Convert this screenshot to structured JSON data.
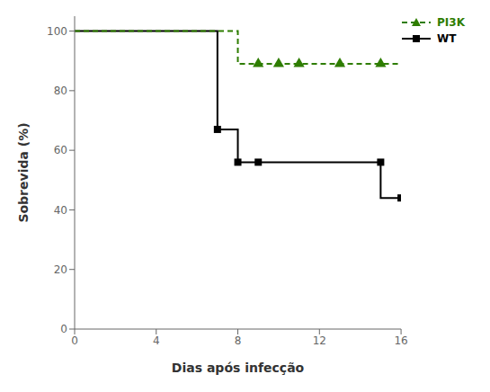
{
  "chart_data": {
    "type": "line",
    "xlabel": "Dias após infecção",
    "ylabel": "Sobrevida (%)",
    "xlim": [
      0,
      16
    ],
    "ylim": [
      0,
      105
    ],
    "xticks": [
      0,
      4,
      8,
      12,
      16
    ],
    "yticks": [
      0,
      20,
      40,
      60,
      80,
      100
    ],
    "grid": false,
    "legend": "upper right",
    "series": [
      {
        "name": "WT",
        "color": "#000000",
        "line_style": "solid",
        "marker": "square",
        "x": [
          0,
          7,
          7,
          8,
          8,
          9,
          9,
          15,
          15,
          16
        ],
        "values": [
          100,
          100,
          67,
          67,
          56,
          56,
          56,
          56,
          44,
          44
        ],
        "marker_x": [
          7,
          8,
          9,
          15,
          16
        ],
        "marker_values": [
          67,
          56,
          56,
          56,
          44
        ]
      },
      {
        "name": "PI3K",
        "color": "#2e7d00",
        "line_style": "dashed",
        "marker": "triangle",
        "x": [
          0,
          8,
          8,
          9,
          9,
          16
        ],
        "values": [
          100,
          100,
          89,
          89,
          89,
          89
        ],
        "marker_x": [
          9,
          10,
          11,
          13,
          15
        ],
        "marker_values": [
          89,
          89,
          89,
          89,
          89
        ]
      }
    ]
  }
}
